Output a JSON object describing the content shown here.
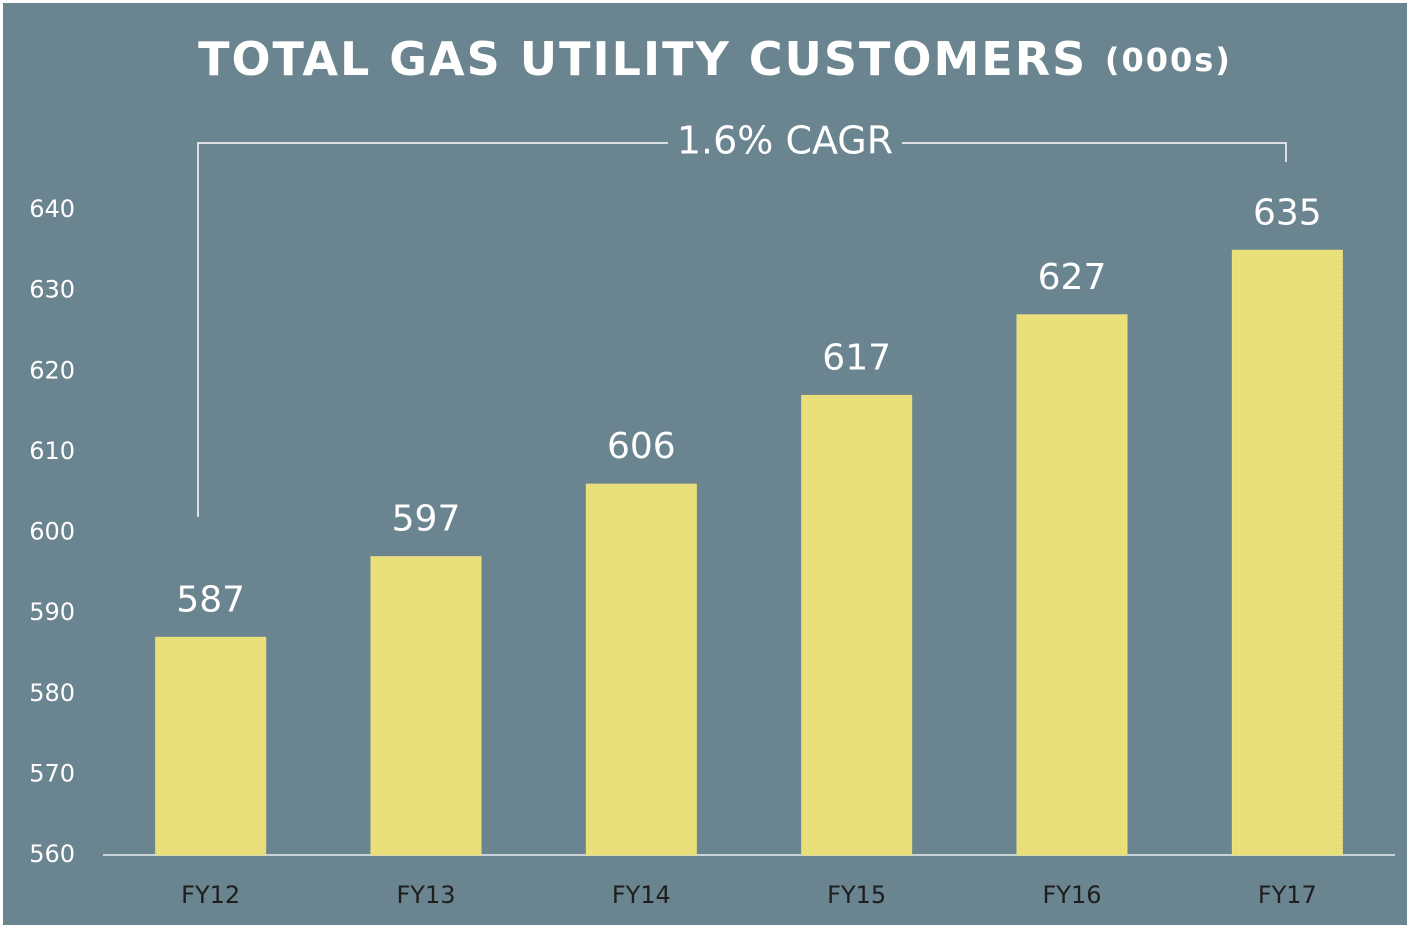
{
  "chart_data": {
    "type": "bar",
    "title": "TOTAL GAS UTILITY CUSTOMERS",
    "unit_label": "(000s)",
    "annotation": "1.6% CAGR",
    "categories": [
      "FY12",
      "FY13",
      "FY14",
      "FY15",
      "FY16",
      "FY17"
    ],
    "values": [
      587,
      597,
      606,
      617,
      627,
      635
    ],
    "color": "#ece27c",
    "ylim": [
      560,
      640
    ],
    "yticks": [
      560,
      570,
      580,
      590,
      600,
      610,
      620,
      630,
      640
    ],
    "grid": false
  }
}
